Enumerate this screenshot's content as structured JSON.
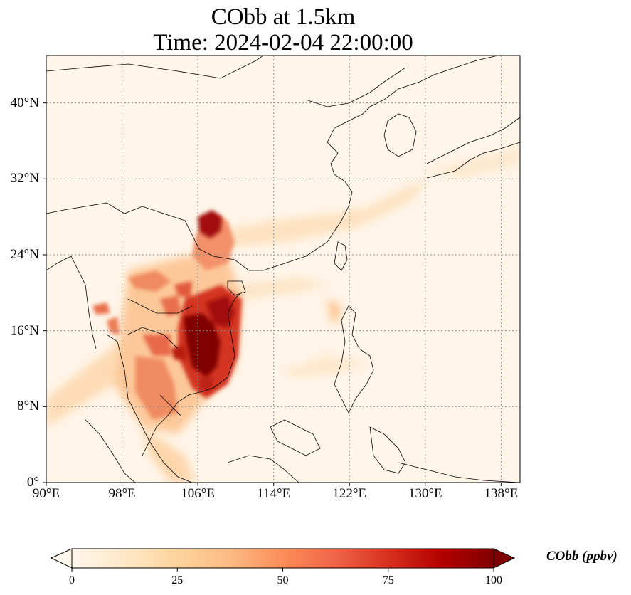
{
  "title": {
    "line1": "CObb at 1.5km",
    "line2": "Time: 2024-02-04 22:00:00"
  },
  "map": {
    "lon_range": [
      90,
      140
    ],
    "lat_range": [
      0,
      45
    ],
    "x_ticks": [
      "90°E",
      "98°E",
      "106°E",
      "114°E",
      "122°E",
      "130°E",
      "138°E"
    ],
    "x_tick_values": [
      90,
      98,
      106,
      114,
      122,
      130,
      138
    ],
    "y_ticks": [
      "0°",
      "8°N",
      "16°N",
      "24°N",
      "32°N",
      "40°N"
    ],
    "y_tick_values": [
      0,
      8,
      16,
      24,
      32,
      40
    ],
    "gridlines": true,
    "colormap": "OrRd"
  },
  "colorbar": {
    "label": "CObb (ppbv)",
    "ticks": [
      "0",
      "25",
      "50",
      "75",
      "100"
    ],
    "tick_values": [
      0,
      25,
      50,
      75,
      100
    ],
    "min": 0,
    "max": 100,
    "extend": "both",
    "colors": [
      "#fff7ec",
      "#fee8c8",
      "#fdd49e",
      "#fdbb84",
      "#fc8d59",
      "#ef6548",
      "#d7301f",
      "#b30000",
      "#7f0000"
    ]
  }
}
